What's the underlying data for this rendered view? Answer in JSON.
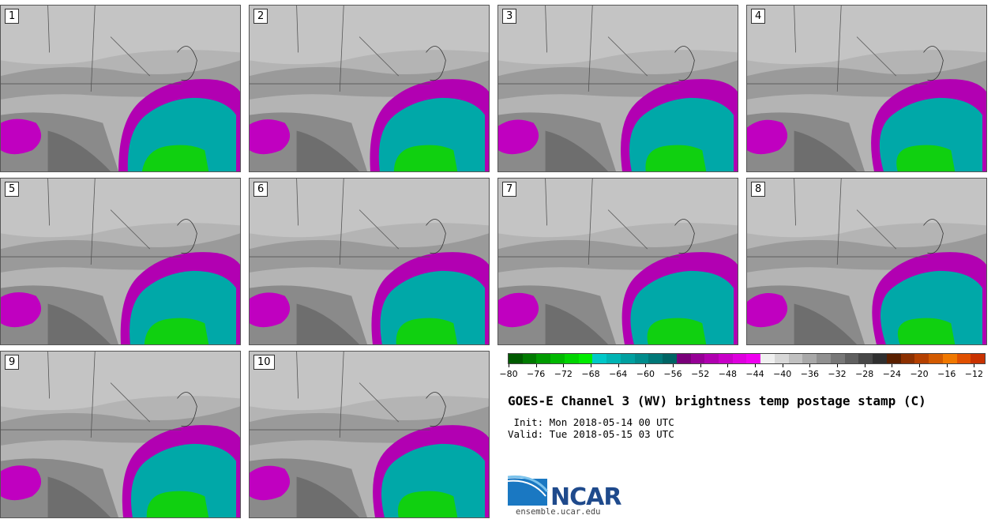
{
  "panels": [
    {
      "label": "1"
    },
    {
      "label": "2"
    },
    {
      "label": "3"
    },
    {
      "label": "4"
    },
    {
      "label": "5"
    },
    {
      "label": "6"
    },
    {
      "label": "7"
    },
    {
      "label": "8"
    },
    {
      "label": "9"
    },
    {
      "label": "10"
    }
  ],
  "colorbar": {
    "colors": [
      "#005a00",
      "#007a00",
      "#009a00",
      "#00b800",
      "#00d400",
      "#00ec00",
      "#00c8c8",
      "#00b4b4",
      "#00a0a0",
      "#008c8c",
      "#007878",
      "#006464",
      "#7a007a",
      "#960096",
      "#b000b0",
      "#c800c8",
      "#de00de",
      "#f000f0",
      "#f0f0f0",
      "#d8d8d8",
      "#c0c0c0",
      "#a8a8a8",
      "#909090",
      "#787878",
      "#606060",
      "#484848",
      "#303030",
      "#5a2000",
      "#8c3000",
      "#b44000",
      "#d25a00",
      "#f07800",
      "#e05000",
      "#c83200"
    ],
    "tick_labels": [
      "−80",
      "−76",
      "−72",
      "−68",
      "−64",
      "−60",
      "−56",
      "−52",
      "−48",
      "−44",
      "−40",
      "−36",
      "−32",
      "−28",
      "−24",
      "−20",
      "−16",
      "−12"
    ]
  },
  "title": "GOES-E Channel 3 (WV) brightness temp postage stamp (C)",
  "init": " Init: Mon 2018-05-14 00 UTC",
  "valid": "Valid: Tue 2018-05-15 03 UTC",
  "logo": {
    "text": "NCAR",
    "url": "ensemble.ucar.edu"
  }
}
